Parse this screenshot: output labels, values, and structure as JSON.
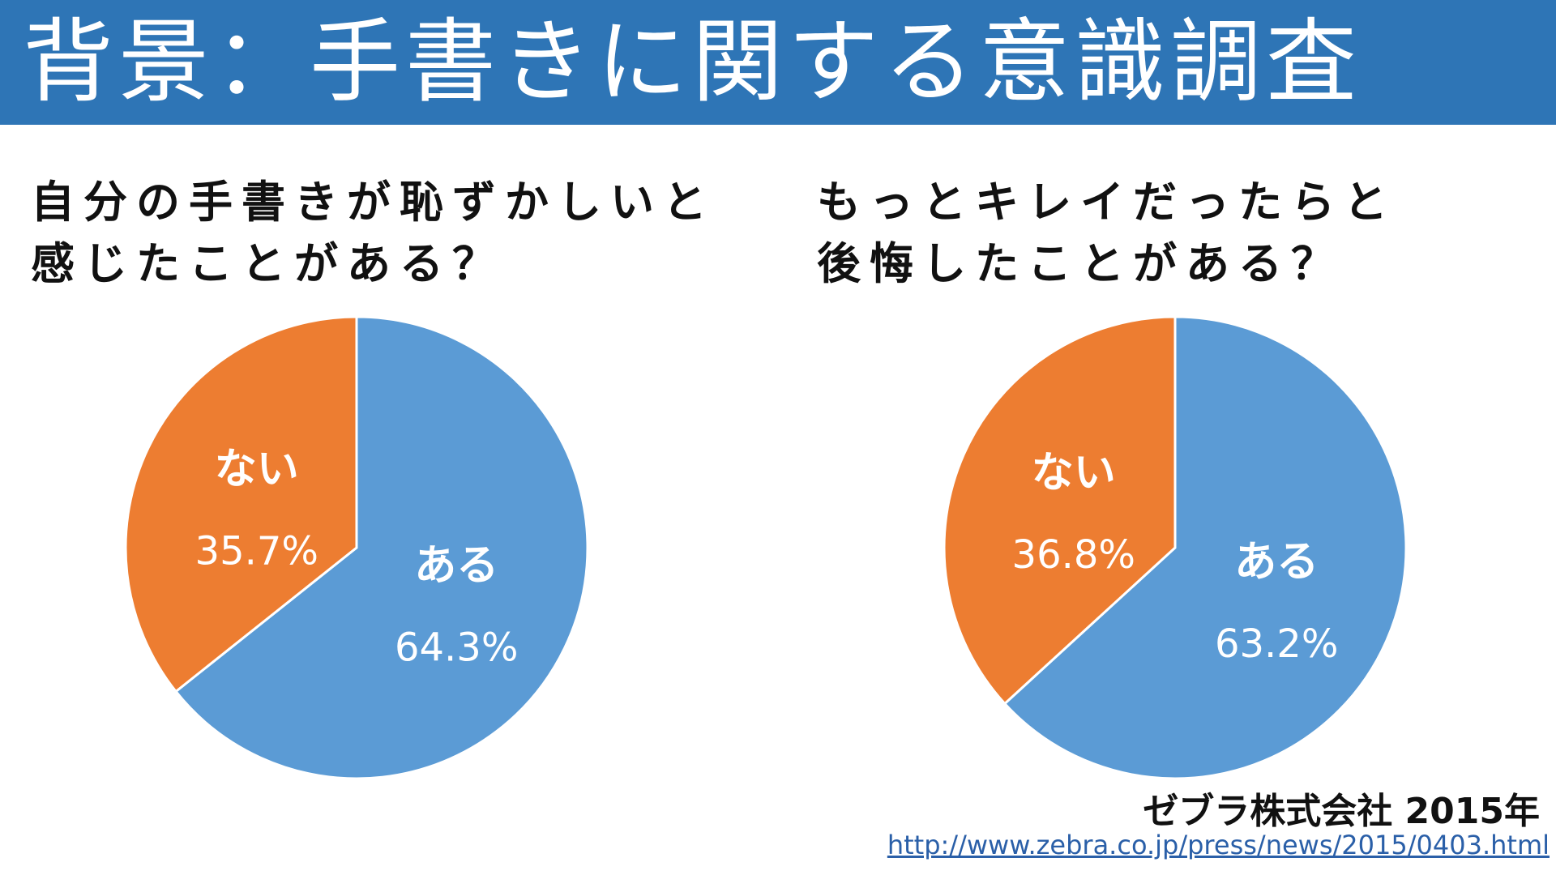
{
  "title": "背景：手書きに関する意識調査",
  "colors": {
    "title_bar": "#2e75b6",
    "yes": "#5b9bd5",
    "no": "#ed7d31",
    "label": "#ffffff"
  },
  "charts": {
    "left": {
      "question_line1": "自分の手書きが恥ずかしいと",
      "question_line2": "感じたことがある？"
    },
    "right": {
      "question_line1": "もっとキレイだったらと",
      "question_line2": "後悔したことがある？"
    }
  },
  "chart_data": [
    {
      "type": "pie",
      "title": "自分の手書きが恥ずかしいと感じたことがある？",
      "slices": [
        {
          "label": "ある",
          "value": 64.3,
          "value_label": "64.3%",
          "color": "#5b9bd5"
        },
        {
          "label": "ない",
          "value": 35.7,
          "value_label": "35.7%",
          "color": "#ed7d31"
        }
      ]
    },
    {
      "type": "pie",
      "title": "もっとキレイだったらと後悔したことがある？",
      "slices": [
        {
          "label": "ある",
          "value": 63.2,
          "value_label": "63.2%",
          "color": "#5b9bd5"
        },
        {
          "label": "ない",
          "value": 36.8,
          "value_label": "36.8%",
          "color": "#ed7d31"
        }
      ]
    }
  ],
  "source": {
    "label": "ゼブラ株式会社 2015年",
    "url": "http://www.zebra.co.jp/press/news/2015/0403.html"
  }
}
